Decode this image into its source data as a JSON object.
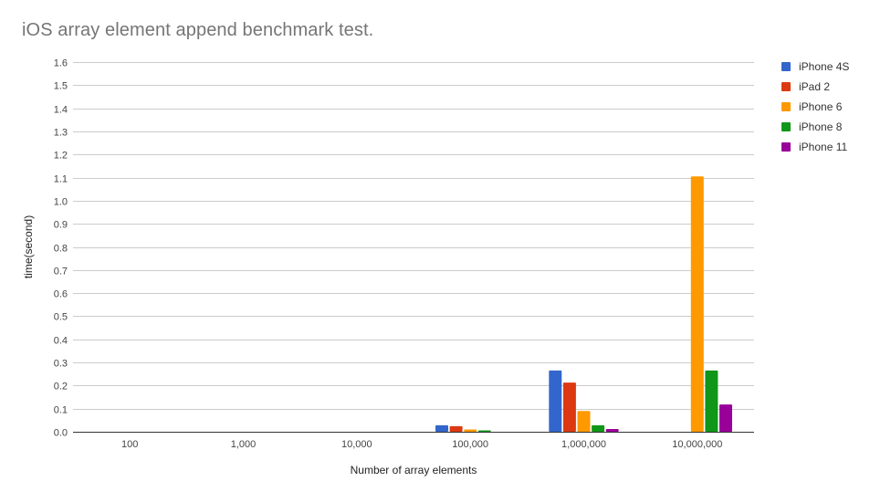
{
  "chart_data": {
    "type": "bar",
    "title": "iOS array element append benchmark test.",
    "xlabel": "Number of array elements",
    "ylabel": "time(second)",
    "categories": [
      "100",
      "1,000",
      "10,000",
      "100,000",
      "1,000,000",
      "10,000,000"
    ],
    "ylim": [
      0,
      1.6
    ],
    "yticks": [
      0.0,
      0.1,
      0.2,
      0.3,
      0.4,
      0.5,
      0.6,
      0.7,
      0.8,
      0.9,
      1.0,
      1.1,
      1.2,
      1.3,
      1.4,
      1.5,
      1.6
    ],
    "ytick_labels": [
      "0.0",
      "0.1",
      "0.2",
      "0.3",
      "0.4",
      "0.5",
      "0.6",
      "0.7",
      "0.8",
      "0.9",
      "1.0",
      "1.1",
      "1.2",
      "1.3",
      "1.4",
      "1.5",
      "1.6"
    ],
    "grid": true,
    "legend_position": "right",
    "series": [
      {
        "name": "iPhone 4S",
        "color": "#3366cc",
        "values": [
          0,
          0,
          0,
          0.028,
          0.265,
          0
        ]
      },
      {
        "name": "iPad 2",
        "color": "#dc3912",
        "values": [
          0,
          0,
          0,
          0.024,
          0.213,
          0
        ]
      },
      {
        "name": "iPhone 6",
        "color": "#ff9900",
        "values": [
          0,
          0,
          0,
          0.01,
          0.09,
          1.105
        ]
      },
      {
        "name": "iPhone 8",
        "color": "#109618",
        "values": [
          0,
          0,
          0,
          0.006,
          0.028,
          0.265
        ]
      },
      {
        "name": "iPhone 11",
        "color": "#990099",
        "values": [
          0,
          0,
          0,
          0.0,
          0.012,
          0.118
        ]
      }
    ]
  }
}
